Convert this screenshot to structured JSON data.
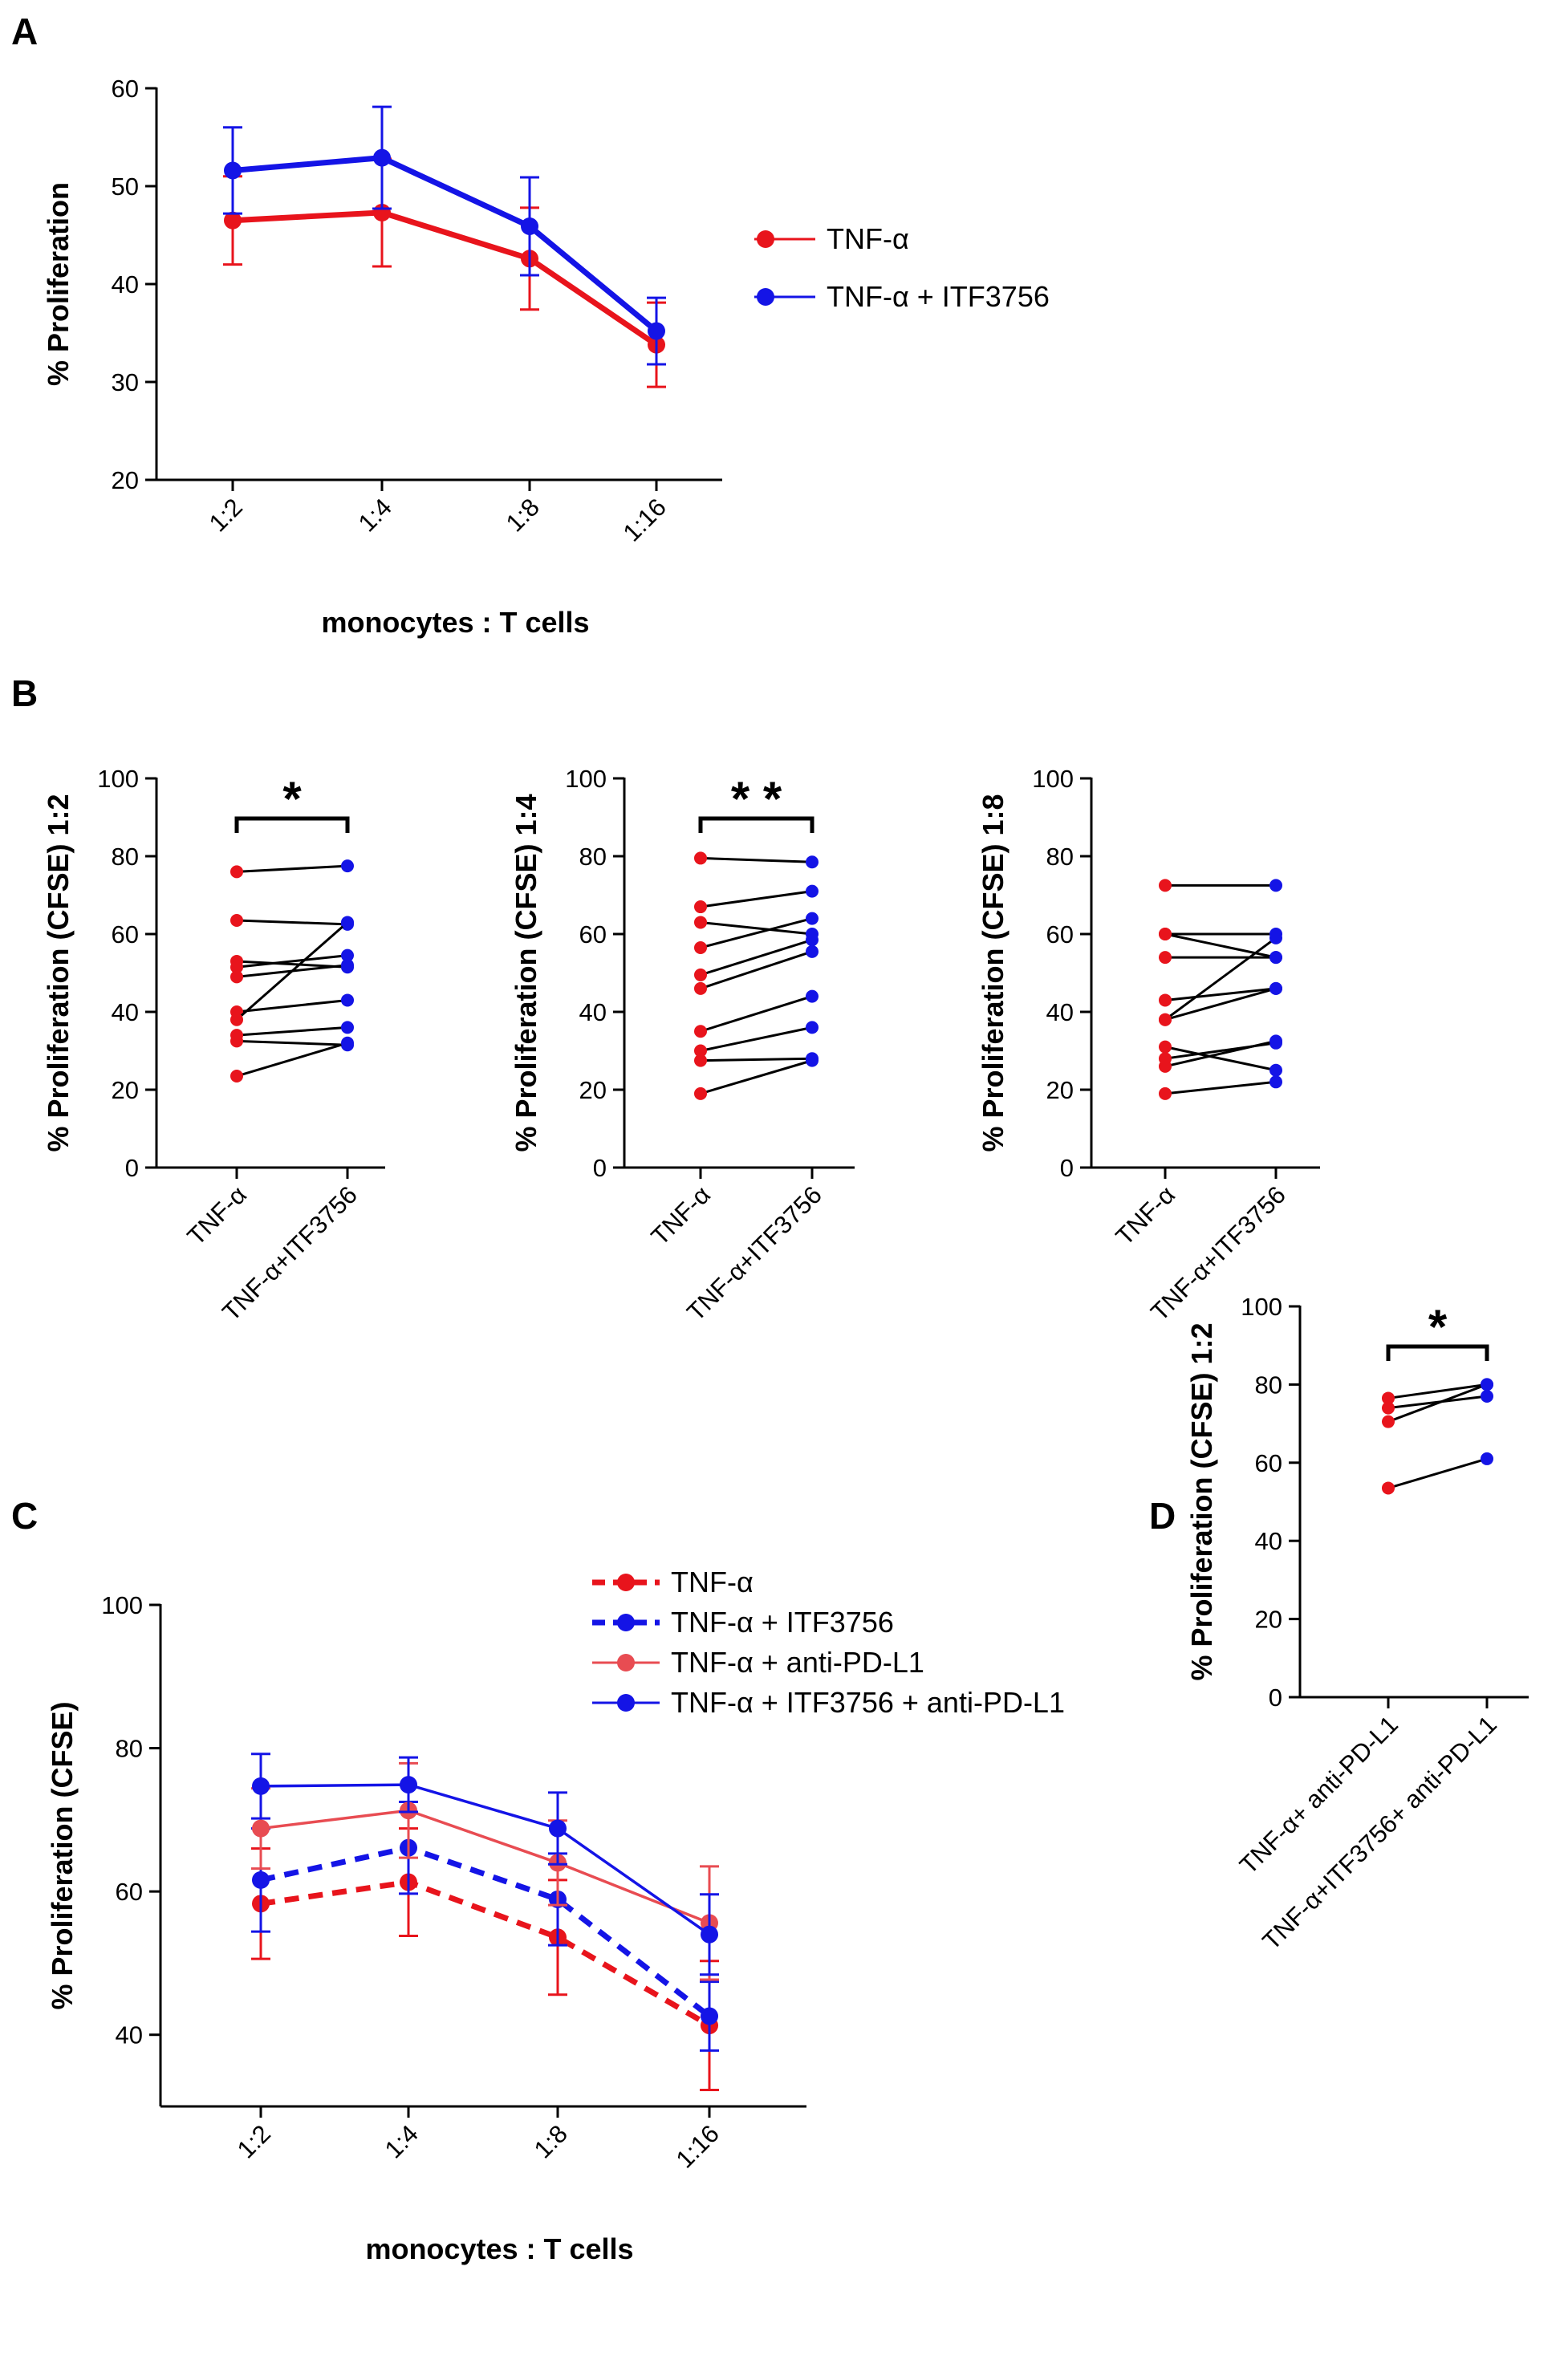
{
  "colors": {
    "red": "#e8141c",
    "blue": "#1414e6",
    "pink": "#e84c52",
    "black": "#000000"
  },
  "panel_labels": [
    "A",
    "B",
    "C",
    "D"
  ],
  "chart_data": [
    {
      "id": "A",
      "type": "line",
      "categories": [
        "1:2",
        "1:4",
        "1:8",
        "1:16"
      ],
      "xlabel": "monocytes : T cells",
      "ylabel": "% Proliferation",
      "ylim": [
        20,
        60
      ],
      "yticks": [
        20,
        30,
        40,
        50,
        60
      ],
      "series": [
        {
          "name": "TNF-α",
          "color": "red",
          "dashed": false,
          "values": [
            46.5,
            47.3,
            42.6,
            33.8
          ],
          "err": [
            4.5,
            5.5,
            5.2,
            4.3
          ]
        },
        {
          "name": "TNF-α + ITF3756",
          "color": "blue",
          "dashed": false,
          "values": [
            51.6,
            52.9,
            45.9,
            35.2
          ],
          "err": [
            4.4,
            5.2,
            5.0,
            3.4
          ]
        }
      ]
    },
    {
      "id": "B1",
      "type": "paired",
      "categories": [
        "TNF-α",
        "TNF-α+ITF3756"
      ],
      "ylabel": "% Proliferation (CFSE) 1:2",
      "ylim": [
        0,
        100
      ],
      "yticks": [
        0,
        20,
        40,
        60,
        80,
        100
      ],
      "significance": "*",
      "pairs": [
        [
          76,
          77.5
        ],
        [
          63.5,
          62.5
        ],
        [
          53,
          51.5
        ],
        [
          51.5,
          54.5
        ],
        [
          49,
          52
        ],
        [
          40,
          43
        ],
        [
          38,
          63
        ],
        [
          34,
          36
        ],
        [
          32.5,
          31.5
        ],
        [
          23.5,
          32
        ]
      ]
    },
    {
      "id": "B2",
      "type": "paired",
      "categories": [
        "TNF-α",
        "TNF-α+ITF3756"
      ],
      "ylabel": "% Proliferation (CFSE) 1:4",
      "ylim": [
        0,
        100
      ],
      "yticks": [
        0,
        20,
        40,
        60,
        80,
        100
      ],
      "significance": "* *",
      "pairs": [
        [
          79.5,
          78.5
        ],
        [
          67,
          71
        ],
        [
          63,
          60
        ],
        [
          56.5,
          64
        ],
        [
          49.5,
          58.5
        ],
        [
          46,
          55.5
        ],
        [
          35,
          44
        ],
        [
          30,
          36
        ],
        [
          27.5,
          28
        ],
        [
          19,
          27.5
        ]
      ]
    },
    {
      "id": "B3",
      "type": "paired",
      "categories": [
        "TNF-α",
        "TNF-α+ITF3756"
      ],
      "ylabel": "% Proliferation (CFSE) 1:8",
      "ylim": [
        0,
        100
      ],
      "yticks": [
        0,
        20,
        40,
        60,
        80,
        100
      ],
      "significance": "",
      "pairs": [
        [
          72.5,
          72.5
        ],
        [
          60,
          60
        ],
        [
          60,
          54
        ],
        [
          54,
          54
        ],
        [
          43,
          46
        ],
        [
          38,
          59
        ],
        [
          38,
          46
        ],
        [
          31,
          25
        ],
        [
          28,
          32
        ],
        [
          26,
          32.5
        ],
        [
          19,
          22
        ]
      ]
    },
    {
      "id": "C",
      "type": "line",
      "categories": [
        "1:2",
        "1:4",
        "1:8",
        "1:16"
      ],
      "xlabel": "monocytes : T cells",
      "ylabel": "% Proliferation (CFSE)",
      "ylim": [
        30,
        100
      ],
      "yticks": [
        40,
        60,
        80,
        100
      ],
      "series": [
        {
          "name": "TNF-α",
          "color": "red",
          "dashed": true,
          "values": [
            58.3,
            61.3,
            53.6,
            41.3
          ],
          "err": [
            7.7,
            7.5,
            8.0,
            9.0
          ]
        },
        {
          "name": "TNF-α + ITF3756",
          "color": "blue",
          "dashed": true,
          "values": [
            61.6,
            66.1,
            58.9,
            42.6
          ],
          "err": [
            7.2,
            6.4,
            6.4,
            4.8
          ]
        },
        {
          "name": "TNF-α + anti-PD-L1",
          "color": "pink",
          "dashed": false,
          "values": [
            68.8,
            71.3,
            64.0,
            55.6
          ],
          "err": [
            5.6,
            6.6,
            5.9,
            7.9
          ]
        },
        {
          "name": "TNF-α + ITF3756 + anti-PD-L1",
          "color": "blue",
          "dashed": false,
          "values": [
            74.7,
            74.9,
            68.8,
            54.0
          ],
          "err": [
            4.5,
            3.8,
            5.0,
            5.6
          ]
        }
      ]
    },
    {
      "id": "D",
      "type": "paired",
      "categories": [
        "TNF-α+ anti-PD-L1",
        "TNF-α+ITF3756+ anti-PD-L1"
      ],
      "ylabel": "% Proliferation (CFSE) 1:2",
      "ylim": [
        0,
        100
      ],
      "yticks": [
        0,
        20,
        40,
        60,
        80,
        100
      ],
      "significance": "*",
      "pairs": [
        [
          76.5,
          80
        ],
        [
          74,
          77
        ],
        [
          70.5,
          80
        ],
        [
          53.5,
          61
        ]
      ]
    }
  ]
}
